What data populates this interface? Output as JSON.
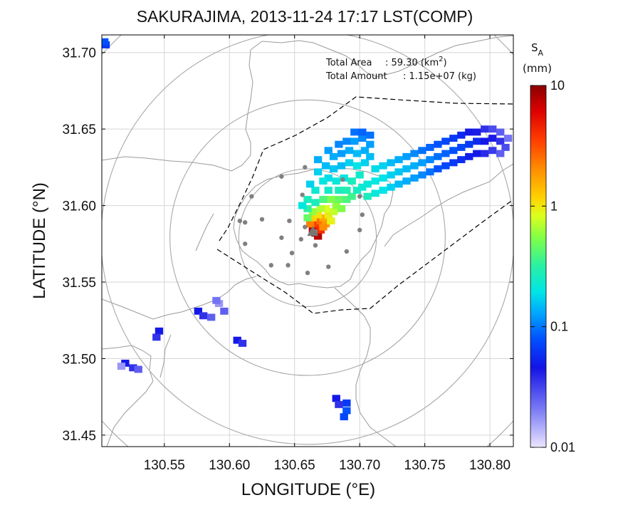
{
  "chart_data": {
    "type": "heatmap",
    "title": "SAKURAJIMA, 2013-11-24 17:17 LST(COMP)",
    "xlabel": "LONGITUDE (°E)",
    "ylabel": "LATITUDE (°N)",
    "xlim": [
      130.502,
      130.818
    ],
    "ylim": [
      31.4425,
      31.7115
    ],
    "xticks": [
      130.55,
      130.6,
      130.65,
      130.7,
      130.75,
      130.8
    ],
    "xtick_labels": [
      "130.55",
      "130.60",
      "130.65",
      "130.70",
      "130.75",
      "130.80"
    ],
    "yticks": [
      31.45,
      31.5,
      31.55,
      31.6,
      31.65,
      31.7
    ],
    "ytick_labels": [
      "31.45",
      "31.50",
      "31.55",
      "31.60",
      "31.65",
      "31.70"
    ],
    "grid": true,
    "annotations": {
      "area_label": "Total Area",
      "area_value": ": 59.30 (km",
      "area_sup": "2",
      "area_close": ")",
      "amount_label": "Total Amount",
      "amount_value": ": 1.15e+07 (kg)"
    },
    "colorbar": {
      "label_main": "S",
      "label_sub": "A",
      "unit": "(mm)",
      "scale": "log",
      "range": [
        0.01,
        10
      ],
      "ticks": [
        0.01,
        0.1,
        1,
        10
      ],
      "tick_labels": [
        "0.01",
        "0.1",
        "1",
        "10"
      ],
      "colors": [
        "#ebe6ff",
        "#7f7ff5",
        "#1414e6",
        "#0050ff",
        "#00a5ff",
        "#00e6e6",
        "#28f0a5",
        "#82ff46",
        "#dcff1e",
        "#ffd200",
        "#ff8c00",
        "#ff3c00",
        "#dc0000",
        "#8c0000"
      ]
    },
    "vent": [
      130.664,
      31.583
    ],
    "range_circle_center": [
      130.66,
      31.579
    ],
    "range_circle_radii_lat_deg": [
      0.045,
      0.09,
      0.135,
      0.18
    ],
    "stations": [
      [
        130.658,
        31.625
      ],
      [
        130.64,
        31.619
      ],
      [
        130.687,
        31.617
      ],
      [
        130.617,
        31.606
      ],
      [
        130.656,
        31.607
      ],
      [
        130.7,
        31.606
      ],
      [
        130.702,
        31.594
      ],
      [
        130.608,
        31.59
      ],
      [
        130.625,
        31.591
      ],
      [
        130.646,
        31.59
      ],
      [
        130.612,
        31.575
      ],
      [
        130.666,
        31.583
      ],
      [
        130.64,
        31.579
      ],
      [
        130.658,
        31.586
      ],
      [
        130.666,
        31.574
      ],
      [
        130.69,
        31.57
      ],
      [
        130.632,
        31.561
      ],
      [
        130.645,
        31.561
      ],
      [
        130.676,
        31.56
      ],
      [
        130.66,
        31.556
      ],
      [
        130.648,
        31.569
      ],
      [
        130.7,
        31.584
      ],
      [
        130.612,
        31.589
      ],
      [
        130.655,
        31.578
      ]
    ],
    "deposit_pixels": [
      [
        130.666,
        31.582,
        9.0
      ],
      [
        130.668,
        31.58,
        7.5
      ],
      [
        130.664,
        31.584,
        8.0
      ],
      [
        130.666,
        31.586,
        5.5
      ],
      [
        130.668,
        31.588,
        3.5
      ],
      [
        130.67,
        31.584,
        4.0
      ],
      [
        130.67,
        31.59,
        2.5
      ],
      [
        130.672,
        31.592,
        1.6
      ],
      [
        130.674,
        31.588,
        1.8
      ],
      [
        130.672,
        31.586,
        2.0
      ],
      [
        130.662,
        31.588,
        2.2
      ],
      [
        130.664,
        31.592,
        1.2
      ],
      [
        130.668,
        31.594,
        1.0
      ],
      [
        130.676,
        31.594,
        0.9
      ],
      [
        130.678,
        31.59,
        0.8
      ],
      [
        130.68,
        31.596,
        0.6
      ],
      [
        130.674,
        31.598,
        0.7
      ],
      [
        130.67,
        31.598,
        0.55
      ],
      [
        130.664,
        31.596,
        0.45
      ],
      [
        130.66,
        31.592,
        0.35
      ],
      [
        130.682,
        31.6,
        0.45
      ],
      [
        130.686,
        31.598,
        0.4
      ],
      [
        130.684,
        31.604,
        0.35
      ],
      [
        130.678,
        31.604,
        0.4
      ],
      [
        130.672,
        31.604,
        0.3
      ],
      [
        130.666,
        31.602,
        0.2
      ],
      [
        130.69,
        31.604,
        0.3
      ],
      [
        130.694,
        31.606,
        0.28
      ],
      [
        130.69,
        31.61,
        0.22
      ],
      [
        130.684,
        31.61,
        0.2
      ],
      [
        130.676,
        31.61,
        0.18
      ],
      [
        130.698,
        31.61,
        0.2
      ],
      [
        130.702,
        31.612,
        0.17
      ],
      [
        130.706,
        31.614,
        0.16
      ],
      [
        130.712,
        31.616,
        0.15
      ],
      [
        130.718,
        31.618,
        0.14
      ],
      [
        130.724,
        31.62,
        0.12
      ],
      [
        130.73,
        31.622,
        0.11
      ],
      [
        130.736,
        31.624,
        0.1
      ],
      [
        130.742,
        31.626,
        0.09
      ],
      [
        130.748,
        31.628,
        0.08
      ],
      [
        130.754,
        31.63,
        0.07
      ],
      [
        130.76,
        31.632,
        0.06
      ],
      [
        130.766,
        31.634,
        0.055
      ],
      [
        130.772,
        31.636,
        0.05
      ],
      [
        130.778,
        31.638,
        0.045
      ],
      [
        130.784,
        31.64,
        0.04
      ],
      [
        130.79,
        31.642,
        0.035
      ],
      [
        130.796,
        31.642,
        0.03
      ],
      [
        130.802,
        31.644,
        0.028
      ],
      [
        130.808,
        31.642,
        0.025
      ],
      [
        130.812,
        31.638,
        0.022
      ],
      [
        130.706,
        31.606,
        0.2
      ],
      [
        130.712,
        31.608,
        0.16
      ],
      [
        130.718,
        31.61,
        0.14
      ],
      [
        130.724,
        31.612,
        0.12
      ],
      [
        130.73,
        31.614,
        0.1
      ],
      [
        130.736,
        31.616,
        0.09
      ],
      [
        130.742,
        31.618,
        0.08
      ],
      [
        130.748,
        31.62,
        0.07
      ],
      [
        130.754,
        31.622,
        0.06
      ],
      [
        130.76,
        31.624,
        0.05
      ],
      [
        130.766,
        31.626,
        0.045
      ],
      [
        130.772,
        31.628,
        0.04
      ],
      [
        130.778,
        31.63,
        0.036
      ],
      [
        130.784,
        31.632,
        0.032
      ],
      [
        130.79,
        31.634,
        0.03
      ],
      [
        130.796,
        31.634,
        0.026
      ],
      [
        130.802,
        31.636,
        0.024
      ],
      [
        130.808,
        31.634,
        0.02
      ],
      [
        130.712,
        31.624,
        0.13
      ],
      [
        130.718,
        31.626,
        0.12
      ],
      [
        130.724,
        31.628,
        0.1
      ],
      [
        130.73,
        31.63,
        0.09
      ],
      [
        130.736,
        31.632,
        0.08
      ],
      [
        130.742,
        31.634,
        0.07
      ],
      [
        130.748,
        31.636,
        0.06
      ],
      [
        130.754,
        31.638,
        0.055
      ],
      [
        130.76,
        31.64,
        0.05
      ],
      [
        130.766,
        31.642,
        0.045
      ],
      [
        130.772,
        31.644,
        0.04
      ],
      [
        130.778,
        31.646,
        0.035
      ],
      [
        130.784,
        31.648,
        0.03
      ],
      [
        130.79,
        31.648,
        0.028
      ],
      [
        130.796,
        31.65,
        0.025
      ],
      [
        130.802,
        31.65,
        0.022
      ],
      [
        130.808,
        31.648,
        0.02
      ],
      [
        130.814,
        31.644,
        0.018
      ],
      [
        130.7,
        31.62,
        0.18
      ],
      [
        130.694,
        31.616,
        0.2
      ],
      [
        130.688,
        31.618,
        0.15
      ],
      [
        130.682,
        31.616,
        0.16
      ],
      [
        130.676,
        31.618,
        0.13
      ],
      [
        130.68,
        31.624,
        0.11
      ],
      [
        130.686,
        31.626,
        0.1
      ],
      [
        130.692,
        31.628,
        0.12
      ],
      [
        130.698,
        31.626,
        0.14
      ],
      [
        130.704,
        31.628,
        0.12
      ],
      [
        130.68,
        31.632,
        0.09
      ],
      [
        130.686,
        31.634,
        0.08
      ],
      [
        130.692,
        31.636,
        0.09
      ],
      [
        130.698,
        31.634,
        0.1
      ],
      [
        130.704,
        31.636,
        0.09
      ],
      [
        130.69,
        31.642,
        0.07
      ],
      [
        130.696,
        31.642,
        0.08
      ],
      [
        130.702,
        31.644,
        0.07
      ],
      [
        130.708,
        31.64,
        0.08
      ],
      [
        130.696,
        31.648,
        0.06
      ],
      [
        130.702,
        31.648,
        0.055
      ],
      [
        130.708,
        31.646,
        0.06
      ],
      [
        130.708,
        31.632,
        0.1
      ],
      [
        130.674,
        31.626,
        0.1
      ],
      [
        130.668,
        31.622,
        0.12
      ],
      [
        130.672,
        31.616,
        0.15
      ],
      [
        130.666,
        31.61,
        0.17
      ],
      [
        130.66,
        31.604,
        0.2
      ],
      [
        130.66,
        31.598,
        0.25
      ],
      [
        130.662,
        31.614,
        0.12
      ],
      [
        130.656,
        31.6,
        0.15
      ],
      [
        130.668,
        31.63,
        0.09
      ],
      [
        130.676,
        31.636,
        0.08
      ],
      [
        130.684,
        31.64,
        0.07
      ],
      [
        130.576,
        31.531,
        0.03
      ],
      [
        130.58,
        31.528,
        0.025
      ],
      [
        130.586,
        31.527,
        0.02
      ],
      [
        130.592,
        31.536,
        0.015
      ],
      [
        130.596,
        31.531,
        0.02
      ],
      [
        130.59,
        31.538,
        0.018
      ],
      [
        130.606,
        31.512,
        0.03
      ],
      [
        130.61,
        31.51,
        0.025
      ],
      [
        130.546,
        31.518,
        0.03
      ],
      [
        130.544,
        31.514,
        0.025
      ],
      [
        130.52,
        31.497,
        0.03
      ],
      [
        130.526,
        31.494,
        0.025
      ],
      [
        130.53,
        31.493,
        0.02
      ],
      [
        130.517,
        31.495,
        0.015
      ],
      [
        130.69,
        31.471,
        0.04
      ],
      [
        130.69,
        31.466,
        0.05
      ],
      [
        130.688,
        31.462,
        0.045
      ],
      [
        130.682,
        31.474,
        0.03
      ],
      [
        130.684,
        31.47,
        0.025
      ],
      [
        130.505,
        31.705,
        0.04
      ],
      [
        130.504,
        31.707,
        0.05
      ]
    ]
  }
}
